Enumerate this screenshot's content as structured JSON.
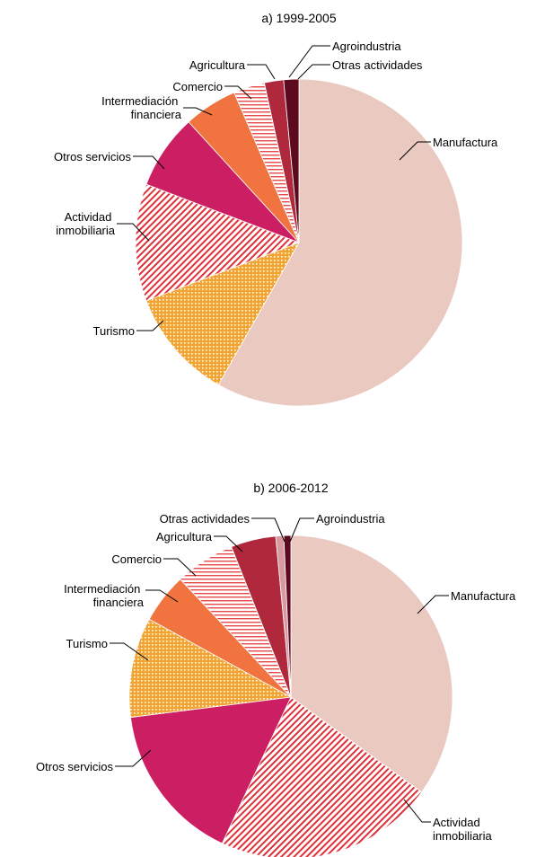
{
  "chart_data": [
    {
      "type": "pie",
      "title": "a) 1999-2005",
      "start_angle": 0,
      "slices": [
        {
          "label": "Manufactura",
          "value": 58.2,
          "color": "#e9c9c0",
          "pattern": "none"
        },
        {
          "label": "Turismo",
          "value": 11.0,
          "color": "#f2a330",
          "pattern": "dots"
        },
        {
          "label": "Actividad inmobiliaria",
          "value": 11.6,
          "color": "#e0303a",
          "pattern": "diagonal"
        },
        {
          "label": "Otros servicios",
          "value": 7.4,
          "color": "#cc1e62",
          "pattern": "none"
        },
        {
          "label": "Intermediación financiera",
          "value": 5.3,
          "color": "#f07340",
          "pattern": "none"
        },
        {
          "label": "Comercio",
          "value": 3.1,
          "color": "#e84848",
          "pattern": "horizontal"
        },
        {
          "label": "Agricultura",
          "value": 1.9,
          "color": "#b0283c",
          "pattern": "none"
        },
        {
          "label": "Agroindustria",
          "value": 0.0,
          "color": "#d89aa0",
          "pattern": "none"
        },
        {
          "label": "Otras actividades",
          "value": 1.5,
          "color": "#5e0a1e",
          "pattern": "none"
        }
      ]
    },
    {
      "type": "pie",
      "title": "b) 2006-2012",
      "start_angle": 0,
      "slices": [
        {
          "label": "Manufactura",
          "value": 35.0,
          "color": "#e9c9c0",
          "pattern": "none"
        },
        {
          "label": "Actividad inmobiliaria",
          "value": 22.0,
          "color": "#e0303a",
          "pattern": "diagonal"
        },
        {
          "label": "Otros servicios",
          "value": 16.0,
          "color": "#cc1e62",
          "pattern": "none"
        },
        {
          "label": "Turismo",
          "value": 10.0,
          "color": "#f2a330",
          "pattern": "dots"
        },
        {
          "label": "Intermediación financiera",
          "value": 5.0,
          "color": "#f07340",
          "pattern": "none"
        },
        {
          "label": "Comercio",
          "value": 6.0,
          "color": "#e84848",
          "pattern": "horizontal"
        },
        {
          "label": "Agricultura",
          "value": 4.5,
          "color": "#b0283c",
          "pattern": "none"
        },
        {
          "label": "Otras actividades",
          "value": 0.8,
          "color": "#d89aa0",
          "pattern": "none"
        },
        {
          "label": "Agroindustria",
          "value": 0.7,
          "color": "#5e0a1e",
          "pattern": "none"
        }
      ]
    }
  ]
}
